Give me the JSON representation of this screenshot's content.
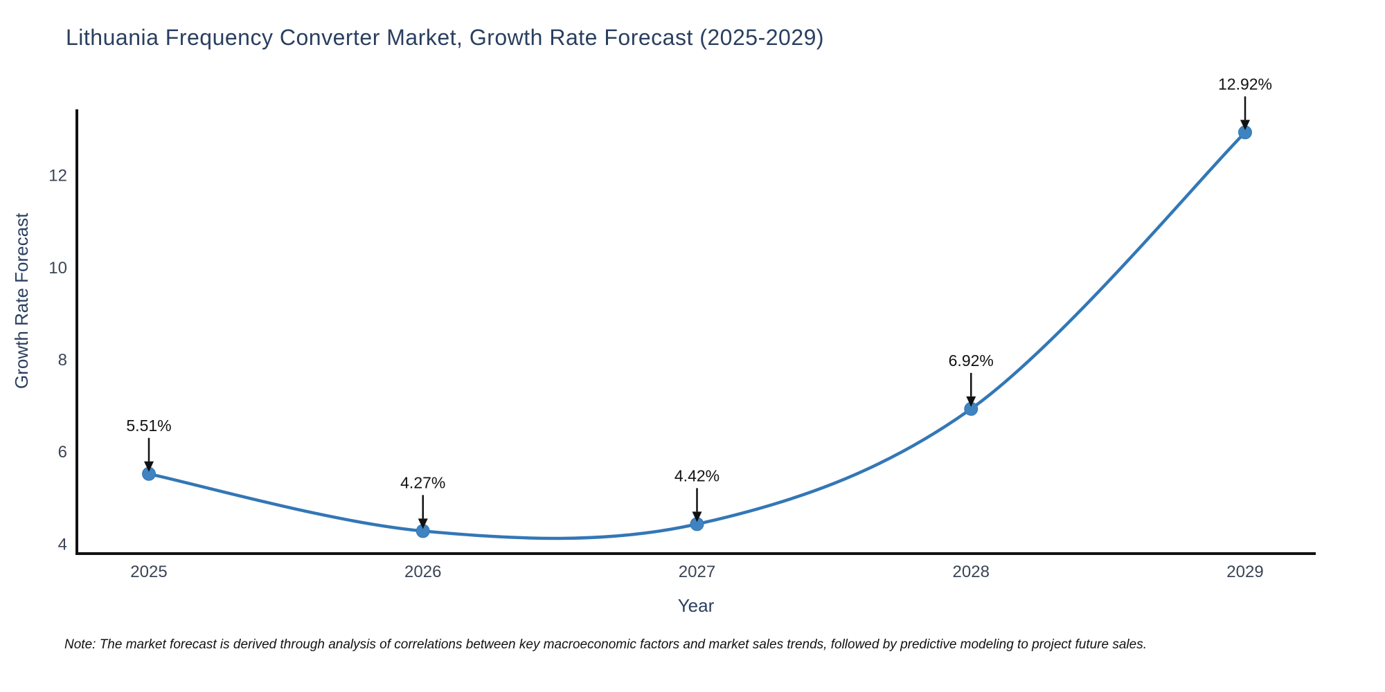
{
  "note": "Note: The market forecast is derived through analysis of correlations between key macroeconomic factors and market sales trends, followed by predictive modeling to project future sales.",
  "chart_data": {
    "type": "line",
    "title": "Lithuania Frequency Converter Market, Growth Rate Forecast (2025-2029)",
    "xlabel": "Year",
    "ylabel": "Growth Rate Forecast",
    "categories": [
      "2025",
      "2026",
      "2027",
      "2028",
      "2029"
    ],
    "series": [
      {
        "name": "Growth Rate Forecast",
        "values": [
          5.51,
          4.27,
          4.42,
          6.92,
          12.92
        ],
        "point_labels": [
          "5.51%",
          "4.27%",
          "4.42%",
          "6.92%",
          "12.92%"
        ]
      }
    ],
    "line_shape": "spline",
    "markers": true,
    "grid": false,
    "legend_position": "none",
    "y_ticks": [
      4,
      6,
      8,
      10,
      12
    ],
    "ylim": [
      3.78,
      13.42
    ],
    "colors": {
      "line": "#3377b6",
      "marker": "#3f84c1",
      "axis": "#111111",
      "tick_text": "#3b4455",
      "title_text": "#2a3f5f",
      "annotation": "#111111"
    }
  }
}
